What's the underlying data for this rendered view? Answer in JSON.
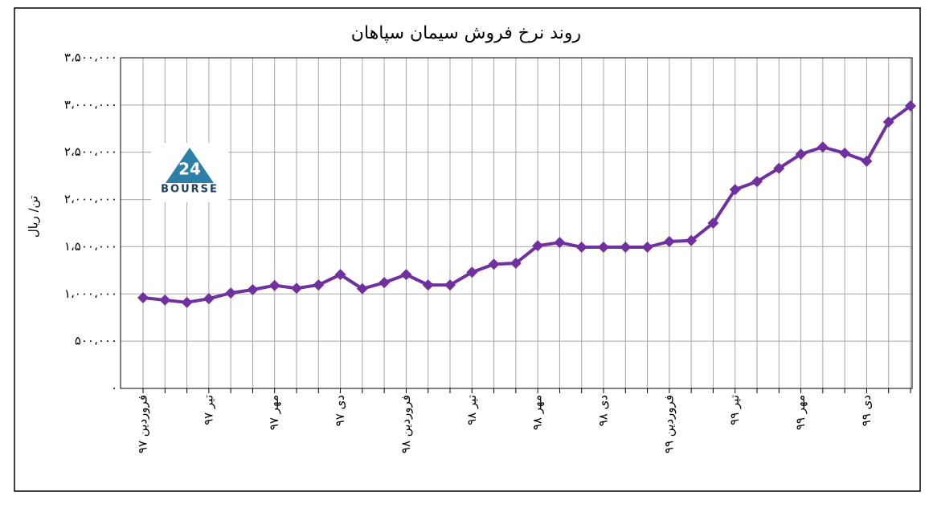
{
  "chart_data": {
    "type": "line",
    "title": "روند نرخ فروش سیمان سپاهان",
    "y_label": "تن/ ریال",
    "logo": {
      "mark": "24",
      "text": "BOURSE"
    },
    "categories": [
      "فروردین ۹۷",
      null,
      null,
      "تیر ۹۷",
      null,
      null,
      "مهر ۹۷",
      null,
      null,
      "دی ۹۷",
      null,
      null,
      "فروردین ۹۸",
      null,
      null,
      "تیر ۹۸",
      null,
      null,
      "مهر ۹۸",
      null,
      null,
      "دی ۹۸",
      null,
      null,
      "فروردین ۹۹",
      null,
      null,
      "تیر ۹۹",
      null,
      null,
      "مهر ۹۹",
      null,
      null,
      "دی ۹۹",
      null,
      null
    ],
    "series": [
      {
        "name": "نرخ فروش",
        "color": "#7030a0",
        "values": [
          960000,
          935000,
          910000,
          950000,
          1010000,
          1045000,
          1090000,
          1060000,
          1095000,
          1205000,
          1055000,
          1120000,
          1205000,
          1095000,
          1095000,
          1230000,
          1315000,
          1325000,
          1510000,
          1545000,
          1495000,
          1495000,
          1495000,
          1495000,
          1555000,
          1565000,
          1750000,
          2105000,
          2190000,
          2330000,
          2480000,
          2555000,
          2490000,
          2405000,
          2820000,
          2990000
        ]
      }
    ],
    "ylim": [
      0,
      3500000
    ],
    "yticks": [
      {
        "value": 0,
        "label": "۰"
      },
      {
        "value": 500000,
        "label": "۵۰۰،۰۰۰"
      },
      {
        "value": 1000000,
        "label": "۱،۰۰۰،۰۰۰"
      },
      {
        "value": 1500000,
        "label": "۱،۵۰۰،۰۰۰"
      },
      {
        "value": 2000000,
        "label": "۲،۰۰۰،۰۰۰"
      },
      {
        "value": 2500000,
        "label": "۲،۵۰۰،۰۰۰"
      },
      {
        "value": 3000000,
        "label": "۳،۰۰۰،۰۰۰"
      },
      {
        "value": 3500000,
        "label": "۳،۵۰۰،۰۰۰"
      }
    ],
    "grid": true
  }
}
